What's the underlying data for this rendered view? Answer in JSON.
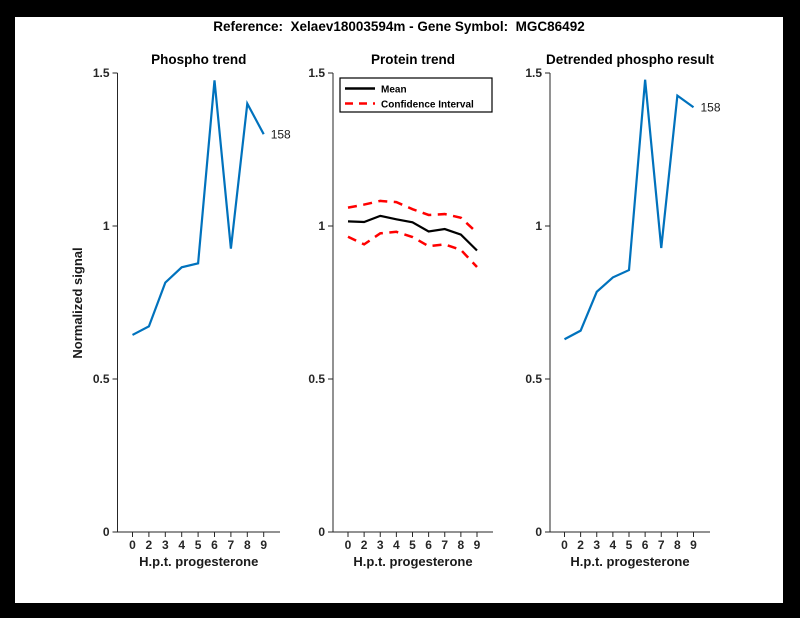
{
  "figure": {
    "title": "Reference:  Xelaev18003594m - Gene Symbol:  MGC86492",
    "background_color": "#000000",
    "canvas_color": "#ffffff",
    "axis_color": "#262626",
    "accent_blue": "#0072BD",
    "accent_red": "#FF0000",
    "line_black": "#000000"
  },
  "chart_data": [
    {
      "type": "line",
      "title": "Phospho trend",
      "xlabel": "H.p.t. progesterone",
      "ylabel": "Normalized signal",
      "xticklabels": [
        "0",
        "2",
        "3",
        "4",
        "5",
        "6",
        "7",
        "8",
        "9"
      ],
      "yticks": [
        0,
        0.5,
        1,
        1.5
      ],
      "yticklabels": [
        "0",
        "0.5",
        "1",
        "1.5"
      ],
      "ylim": [
        0,
        1.5
      ],
      "grid": false,
      "series": [
        {
          "name": "Phospho trend",
          "color": "#0072BD",
          "style": "solid",
          "values": [
            0.644,
            0.672,
            0.815,
            0.865,
            0.878,
            1.476,
            0.926,
            1.4,
            1.3
          ],
          "end_label": "158"
        }
      ],
      "legend": null
    },
    {
      "type": "line",
      "title": "Protein trend",
      "xlabel": "H.p.t. progesterone",
      "ylabel": null,
      "xticklabels": [
        "0",
        "2",
        "3",
        "4",
        "5",
        "6",
        "7",
        "8",
        "9"
      ],
      "yticks": [
        0,
        0.5,
        1,
        1.5
      ],
      "yticklabels": [
        "0",
        "0.5",
        "1",
        "1.5"
      ],
      "ylim": [
        0,
        1.5
      ],
      "grid": false,
      "series": [
        {
          "name": "Mean",
          "color": "#000000",
          "style": "solid",
          "values": [
            1.015,
            1.013,
            1.033,
            1.022,
            1.012,
            0.982,
            0.99,
            0.972,
            0.92
          ]
        },
        {
          "name": "Confidence Interval upper",
          "color": "#FF0000",
          "style": "dashed",
          "values": [
            1.06,
            1.07,
            1.082,
            1.078,
            1.055,
            1.036,
            1.039,
            1.027,
            0.978
          ]
        },
        {
          "name": "Confidence Interval lower",
          "color": "#FF0000",
          "style": "dashed",
          "values": [
            0.965,
            0.94,
            0.976,
            0.981,
            0.964,
            0.934,
            0.94,
            0.922,
            0.866
          ]
        }
      ],
      "legend": {
        "position": "top-left",
        "entries": [
          {
            "label": "Mean",
            "color": "#000000",
            "style": "solid"
          },
          {
            "label": "Confidence Interval",
            "color": "#FF0000",
            "style": "dashed"
          }
        ]
      }
    },
    {
      "type": "line",
      "title": "Detrended phospho result",
      "xlabel": "H.p.t. progesterone",
      "ylabel": null,
      "xticklabels": [
        "0",
        "2",
        "3",
        "4",
        "5",
        "6",
        "7",
        "8",
        "9"
      ],
      "yticks": [
        0,
        0.5,
        1,
        1.5
      ],
      "yticklabels": [
        "0",
        "0.5",
        "1",
        "1.5"
      ],
      "ylim": [
        0,
        1.5
      ],
      "grid": false,
      "series": [
        {
          "name": "Detrended phospho",
          "color": "#0072BD",
          "style": "solid",
          "values": [
            0.63,
            0.658,
            0.785,
            0.832,
            0.856,
            1.478,
            0.928,
            1.426,
            1.388
          ],
          "end_label": "158"
        }
      ],
      "legend": null
    }
  ]
}
